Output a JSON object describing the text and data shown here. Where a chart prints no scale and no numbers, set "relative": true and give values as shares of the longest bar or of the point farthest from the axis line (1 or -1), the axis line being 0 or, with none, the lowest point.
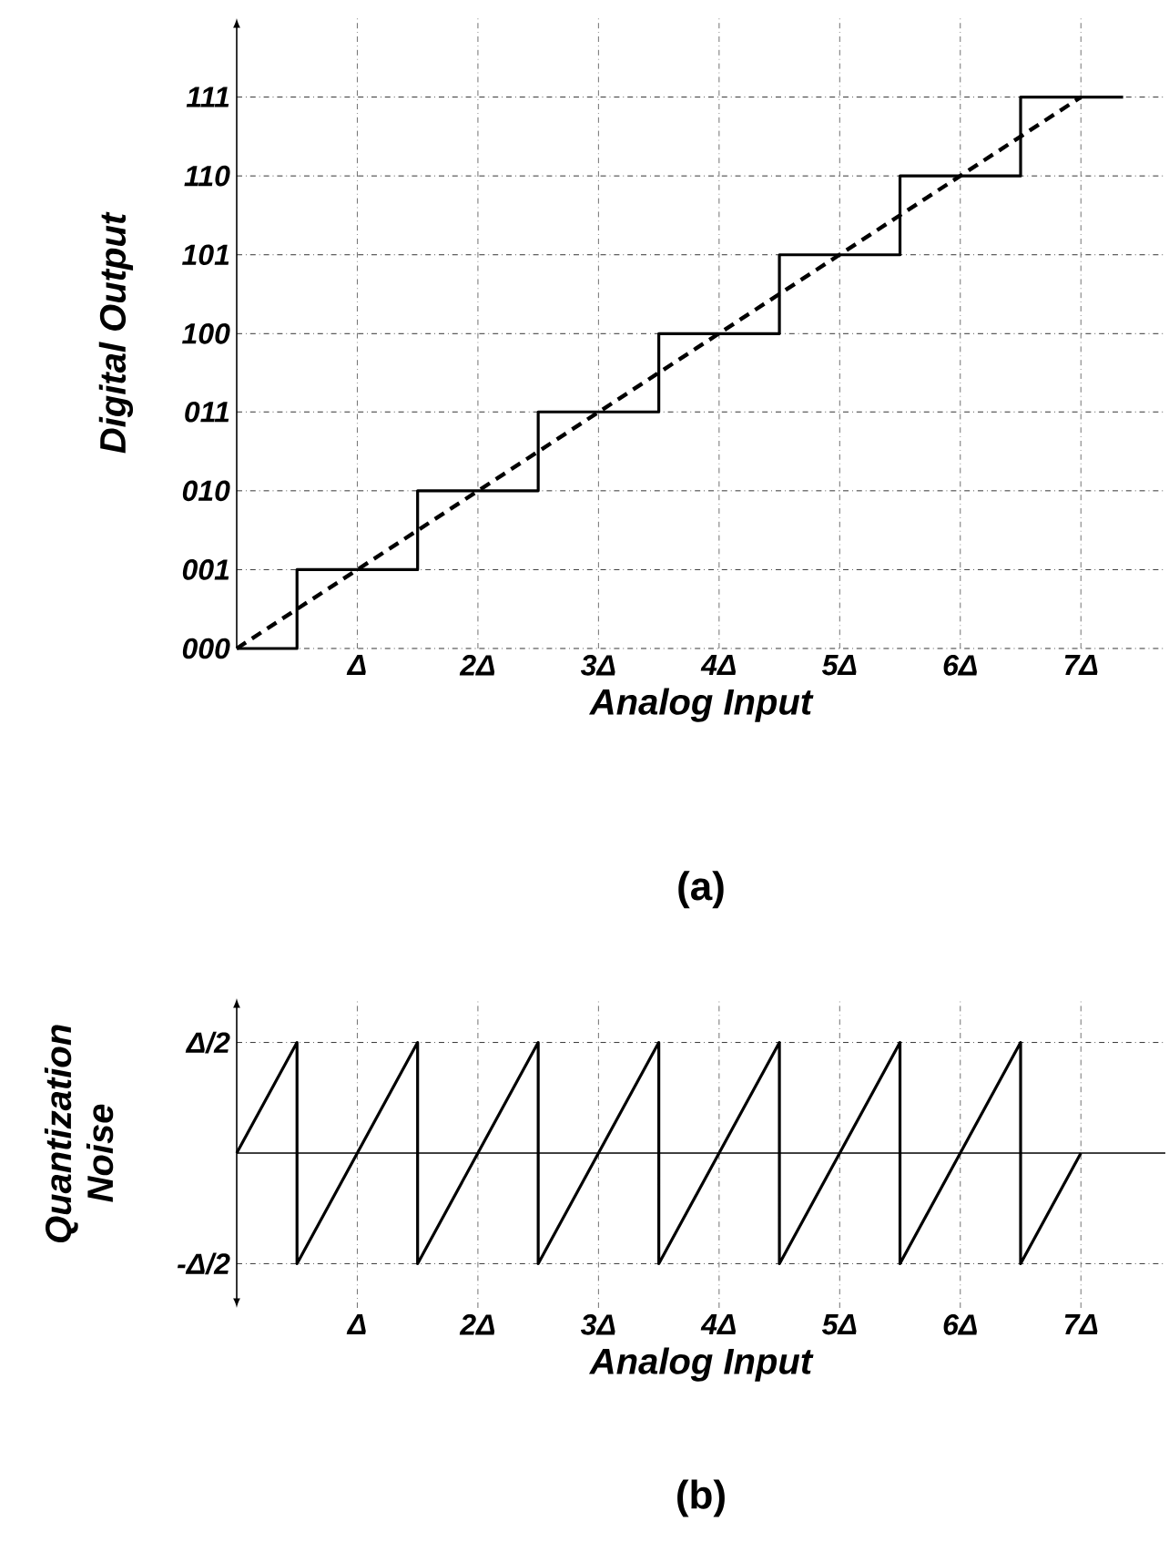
{
  "chart_data": [
    {
      "type": "line",
      "title": "(a)",
      "xlabel": "Analog Input",
      "ylabel": "Digital Output",
      "relative": true,
      "series": [
        {
          "type": "step",
          "color": "#000000",
          "x": [
            0,
            0.5,
            1.5,
            2.5,
            3.5,
            4.5,
            5.5,
            6.5,
            7.35
          ],
          "values": [
            0,
            0.143,
            0.286,
            0.429,
            0.571,
            0.714,
            0.857,
            1,
            1
          ]
        },
        {
          "type": "line",
          "color": "#000000",
          "line_style": "dashed",
          "x": [
            0,
            7
          ],
          "values": [
            0,
            1
          ]
        }
      ],
      "xlim": [
        0,
        7.7
      ],
      "xticks": [
        {
          "value": 1,
          "label": "Δ"
        },
        {
          "value": 2,
          "label": "2Δ"
        },
        {
          "value": 3,
          "label": "3Δ"
        },
        {
          "value": 4,
          "label": "4Δ"
        },
        {
          "value": 5,
          "label": "5Δ"
        },
        {
          "value": 6,
          "label": "6Δ"
        },
        {
          "value": 7,
          "label": "7Δ"
        }
      ],
      "ref_lines": [
        {
          "axis": "y",
          "value": 0,
          "line_style": "dotted"
        },
        {
          "axis": "y",
          "value": 0.143,
          "line_style": "dotted"
        },
        {
          "axis": "y",
          "value": 0.286,
          "line_style": "dotted"
        },
        {
          "axis": "y",
          "value": 0.429,
          "line_style": "dotted"
        },
        {
          "axis": "y",
          "value": 0.571,
          "line_style": "dotted"
        },
        {
          "axis": "y",
          "value": 0.714,
          "line_style": "dotted"
        },
        {
          "axis": "y",
          "value": 0.857,
          "line_style": "dotted"
        },
        {
          "axis": "y",
          "value": 1,
          "line_style": "dotted"
        }
      ],
      "annotations": [
        "000",
        "001",
        "010",
        "011",
        "100",
        "101",
        "110",
        "111"
      ],
      "grid": "x"
    },
    {
      "type": "line",
      "title": "(b)",
      "xlabel": "Analog Input",
      "ylabel": "Quantization Noise",
      "relative": true,
      "series": [
        {
          "color": "#000000",
          "x": [
            0,
            0.5,
            0.5,
            1.5,
            1.5,
            2.5,
            2.5,
            3.5,
            3.5,
            4.5,
            4.5,
            5.5,
            5.5,
            6.5,
            6.5,
            7
          ],
          "values": [
            0,
            1,
            -1,
            1,
            -1,
            1,
            -1,
            1,
            -1,
            1,
            -1,
            1,
            -1,
            1,
            -1,
            0
          ]
        }
      ],
      "xlim": [
        0,
        7.7
      ],
      "xticks": [
        {
          "value": 1,
          "label": "Δ"
        },
        {
          "value": 2,
          "label": "2Δ"
        },
        {
          "value": 3,
          "label": "3Δ"
        },
        {
          "value": 4,
          "label": "4Δ"
        },
        {
          "value": 5,
          "label": "5Δ"
        },
        {
          "value": 6,
          "label": "6Δ"
        },
        {
          "value": 7,
          "label": "7Δ"
        }
      ],
      "ref_lines": [
        {
          "axis": "y",
          "value": 0
        },
        {
          "axis": "y",
          "value": 1,
          "label": "Δ/2",
          "line_style": "dotted"
        },
        {
          "axis": "y",
          "value": -1,
          "label": "-Δ/2",
          "line_style": "dotted"
        }
      ],
      "grid": "x"
    }
  ]
}
